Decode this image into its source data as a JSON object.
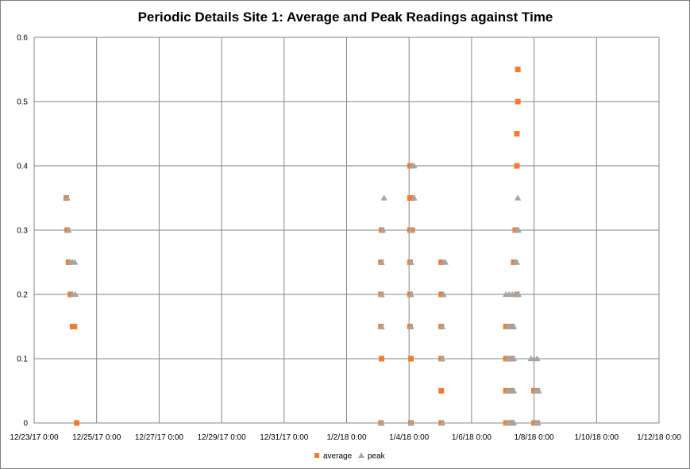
{
  "chart_data": {
    "type": "scatter",
    "title": "Periodic Details Site 1: Average and Peak Readings against Time",
    "xlabel": "",
    "ylabel": "",
    "x_tick_labels": [
      "12/23/17 0:00",
      "12/25/17 0:00",
      "12/27/17 0:00",
      "12/29/17 0:00",
      "12/31/17 0:00",
      "1/2/18 0:00",
      "1/4/18 0:00",
      "1/6/18 0:00",
      "1/8/18 0:00",
      "1/10/18 0:00",
      "1/12/18 0:00"
    ],
    "xlim_days": [
      0,
      20
    ],
    "ylim": [
      0,
      0.6
    ],
    "y_ticks": [
      0,
      0.1,
      0.2,
      0.3,
      0.4,
      0.5,
      0.6
    ],
    "grid": true,
    "legend_position": "bottom",
    "series": [
      {
        "name": "average",
        "marker": "square",
        "color": "#ED7D31",
        "points": [
          [
            1.03,
            0.35
          ],
          [
            1.06,
            0.3
          ],
          [
            1.1,
            0.25
          ],
          [
            1.16,
            0.2
          ],
          [
            1.23,
            0.15
          ],
          [
            1.29,
            0.15
          ],
          [
            1.36,
            0.0
          ],
          [
            11.12,
            0.3
          ],
          [
            11.1,
            0.25
          ],
          [
            11.1,
            0.2
          ],
          [
            11.1,
            0.15
          ],
          [
            11.12,
            0.1
          ],
          [
            11.1,
            0.0
          ],
          [
            12.03,
            0.4
          ],
          [
            12.03,
            0.35
          ],
          [
            12.1,
            0.35
          ],
          [
            12.03,
            0.3
          ],
          [
            12.1,
            0.3
          ],
          [
            12.03,
            0.25
          ],
          [
            12.03,
            0.2
          ],
          [
            12.03,
            0.15
          ],
          [
            12.06,
            0.1
          ],
          [
            12.06,
            0.0
          ],
          [
            13.03,
            0.25
          ],
          [
            13.03,
            0.2
          ],
          [
            13.03,
            0.15
          ],
          [
            13.03,
            0.1
          ],
          [
            13.03,
            0.05
          ],
          [
            13.03,
            0.0
          ],
          [
            15.1,
            0.15
          ],
          [
            15.2,
            0.15
          ],
          [
            15.3,
            0.15
          ],
          [
            15.1,
            0.1
          ],
          [
            15.2,
            0.1
          ],
          [
            15.3,
            0.1
          ],
          [
            15.1,
            0.05
          ],
          [
            15.2,
            0.05
          ],
          [
            15.3,
            0.05
          ],
          [
            15.1,
            0.0
          ],
          [
            15.2,
            0.0
          ],
          [
            15.3,
            0.0
          ],
          [
            15.35,
            0.25
          ],
          [
            15.4,
            0.3
          ],
          [
            15.45,
            0.2
          ],
          [
            15.48,
            0.55
          ],
          [
            15.48,
            0.5
          ],
          [
            15.45,
            0.45
          ],
          [
            15.45,
            0.4
          ],
          [
            16.0,
            0.05
          ],
          [
            16.1,
            0.05
          ],
          [
            16.0,
            0.0
          ],
          [
            16.1,
            0.0
          ]
        ]
      },
      {
        "name": "peak",
        "marker": "triangle",
        "color": "#A5A5A5",
        "points": [
          [
            1.06,
            0.35
          ],
          [
            1.1,
            0.3
          ],
          [
            1.16,
            0.25
          ],
          [
            1.23,
            0.25
          ],
          [
            1.3,
            0.25
          ],
          [
            1.23,
            0.2
          ],
          [
            1.32,
            0.2
          ],
          [
            11.2,
            0.35
          ],
          [
            11.16,
            0.3
          ],
          [
            11.12,
            0.25
          ],
          [
            11.12,
            0.2
          ],
          [
            11.12,
            0.15
          ],
          [
            11.12,
            0.0
          ],
          [
            12.1,
            0.4
          ],
          [
            12.16,
            0.4
          ],
          [
            12.16,
            0.35
          ],
          [
            12.06,
            0.3
          ],
          [
            12.06,
            0.25
          ],
          [
            12.06,
            0.2
          ],
          [
            12.06,
            0.15
          ],
          [
            12.06,
            0.0
          ],
          [
            13.1,
            0.25
          ],
          [
            13.16,
            0.25
          ],
          [
            13.1,
            0.2
          ],
          [
            13.06,
            0.15
          ],
          [
            13.06,
            0.1
          ],
          [
            13.06,
            0.0
          ],
          [
            15.1,
            0.2
          ],
          [
            15.2,
            0.2
          ],
          [
            15.3,
            0.2
          ],
          [
            15.15,
            0.15
          ],
          [
            15.25,
            0.15
          ],
          [
            15.35,
            0.15
          ],
          [
            15.15,
            0.1
          ],
          [
            15.25,
            0.1
          ],
          [
            15.35,
            0.1
          ],
          [
            15.15,
            0.05
          ],
          [
            15.25,
            0.05
          ],
          [
            15.35,
            0.05
          ],
          [
            15.15,
            0.0
          ],
          [
            15.25,
            0.0
          ],
          [
            15.35,
            0.0
          ],
          [
            15.4,
            0.25
          ],
          [
            15.45,
            0.25
          ],
          [
            15.45,
            0.3
          ],
          [
            15.5,
            0.3
          ],
          [
            15.48,
            0.35
          ],
          [
            15.4,
            0.2
          ],
          [
            15.5,
            0.2
          ],
          [
            15.9,
            0.1
          ],
          [
            16.0,
            0.1
          ],
          [
            16.1,
            0.1
          ],
          [
            16.05,
            0.05
          ],
          [
            16.15,
            0.05
          ],
          [
            16.05,
            0.0
          ],
          [
            16.12,
            0.0
          ]
        ]
      }
    ]
  }
}
